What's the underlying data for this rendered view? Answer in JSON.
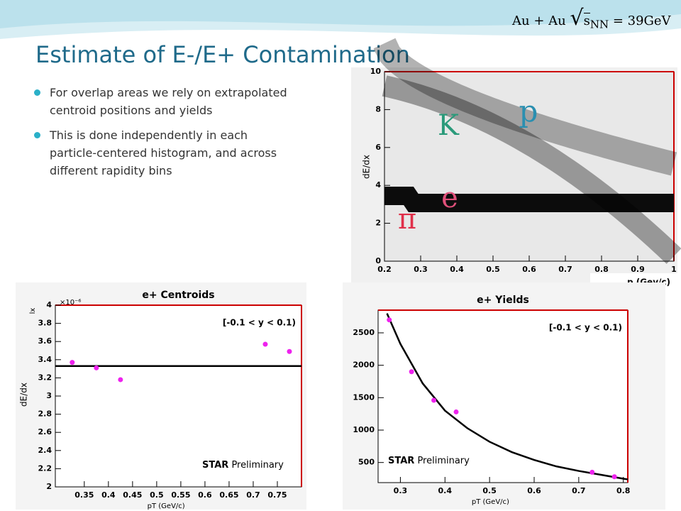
{
  "header": {
    "title": "Estimate of E-/E+ Contamination",
    "formula": {
      "system": "Au + Au",
      "root": "s",
      "subscript": "NN",
      "energy": "= 39GeV"
    }
  },
  "bullets": [
    "For overlap areas we rely on extrapolated centroid positions and yields",
    "This is done independently in each particle-centered histogram, and across different rapidity bins"
  ],
  "chart_data": [
    {
      "type": "density",
      "xlabel": "p  (Gev/c)",
      "ylabel": "dE/dx",
      "xlim": [
        0.2,
        1
      ],
      "ylim": [
        0,
        10
      ],
      "xticks": [
        0.2,
        0.3,
        0.4,
        0.5,
        0.6,
        0.7,
        0.8,
        0.9,
        1
      ],
      "yticks": [
        0,
        2,
        4,
        6,
        8,
        10
      ],
      "annotations": [
        {
          "text": "p",
          "color": "#2a8fb0"
        },
        {
          "text": "K",
          "color": "#2a9a7a"
        },
        {
          "text": "e",
          "color": "#e0507a"
        },
        {
          "text": "π",
          "color": "#e0304a"
        }
      ]
    },
    {
      "type": "scatter",
      "title": "e+ Centroids",
      "xlabel": "pT (GeV/c)",
      "ylabel": "dE/dx",
      "yunit": "×10⁻⁶",
      "yname": "lx",
      "xlim": [
        0.29,
        0.8
      ],
      "ylim": [
        2,
        4
      ],
      "xticks": [
        0.35,
        0.4,
        0.45,
        0.5,
        0.55,
        0.6,
        0.65,
        0.7,
        0.75
      ],
      "yticks": [
        2,
        2.2,
        2.4,
        2.6,
        2.8,
        3,
        3.2,
        3.4,
        3.6,
        3.8,
        4
      ],
      "points": {
        "color": "#ee22ee",
        "x": [
          0.325,
          0.375,
          0.425,
          0.725,
          0.775
        ],
        "values": [
          3.37,
          3.31,
          3.18,
          3.57,
          3.49
        ]
      },
      "fit": {
        "color": "#000000",
        "x": [
          0.29,
          0.8
        ],
        "values": [
          3.33,
          3.33
        ]
      },
      "annotations": [
        "[-0.1 < y < 0.1)",
        "STAR",
        "Preliminary"
      ]
    },
    {
      "type": "scatter",
      "title": "e+ Yields",
      "xlabel": "pT (GeV/c)",
      "xlim": [
        0.25,
        0.81
      ],
      "ylim": [
        190,
        2850
      ],
      "xticks": [
        0.3,
        0.4,
        0.5,
        0.6,
        0.7,
        0.8
      ],
      "yticks": [
        500,
        1000,
        1500,
        2000,
        2500
      ],
      "points": {
        "color": "#ee22ee",
        "x": [
          0.275,
          0.325,
          0.375,
          0.425,
          0.73,
          0.78
        ],
        "values": [
          2700,
          1900,
          1460,
          1280,
          350,
          280
        ]
      },
      "fit": {
        "color": "#000000",
        "x": [
          0.27,
          0.3,
          0.35,
          0.4,
          0.45,
          0.5,
          0.55,
          0.6,
          0.65,
          0.7,
          0.75,
          0.8,
          0.81
        ],
        "values": [
          2800,
          2330,
          1720,
          1300,
          1030,
          820,
          660,
          540,
          440,
          370,
          310,
          250,
          240
        ]
      },
      "annotations": [
        "[-0.1 < y < 0.1)",
        "STAR",
        "Preliminary"
      ]
    }
  ]
}
